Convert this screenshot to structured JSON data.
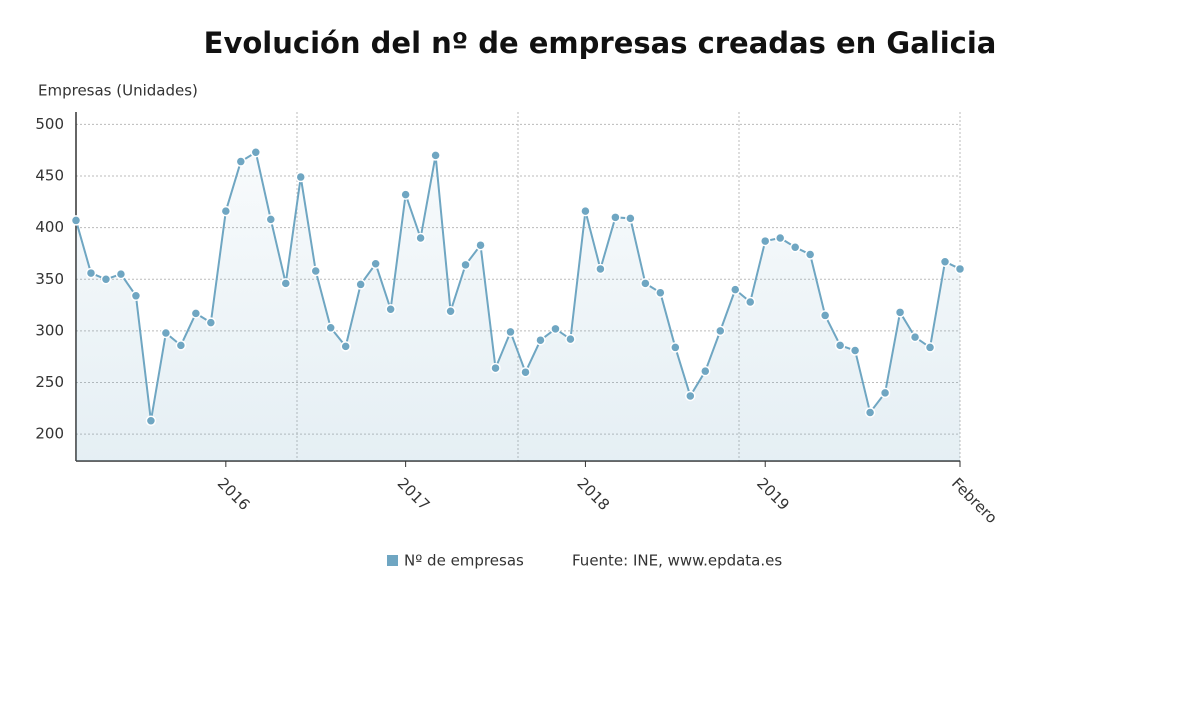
{
  "chart_data": {
    "type": "line",
    "title": "Evolución del nº de empresas creadas en Galicia",
    "y_label": "Empresas (Unidades)",
    "source": "Fuente: INE, www.epdata.es",
    "categories": [
      null,
      null,
      null,
      null,
      null,
      null,
      null,
      null,
      null,
      null,
      "2016",
      null,
      null,
      null,
      null,
      null,
      null,
      null,
      null,
      null,
      null,
      null,
      "2017",
      null,
      null,
      null,
      null,
      null,
      null,
      null,
      null,
      null,
      null,
      null,
      "2018",
      null,
      null,
      null,
      null,
      null,
      null,
      null,
      null,
      null,
      null,
      null,
      "2019",
      null,
      null,
      null,
      null,
      null,
      null,
      null,
      null,
      null,
      null,
      null,
      null,
      "Febrero"
    ],
    "series": [
      {
        "name": "Nº de empresas",
        "color": "#6fa6c2",
        "values": [
          407,
          356,
          350,
          355,
          334,
          213,
          298,
          286,
          317,
          308,
          416,
          464,
          473,
          408,
          346,
          449,
          358,
          303,
          285,
          345,
          365,
          321,
          432,
          390,
          470,
          319,
          364,
          383,
          264,
          299,
          260,
          291,
          302,
          292,
          416,
          360,
          410,
          409,
          346,
          337,
          284,
          237,
          261,
          300,
          340,
          328,
          387,
          390,
          381,
          374,
          315,
          286,
          281,
          221,
          240,
          318,
          294,
          284,
          367,
          360
        ]
      }
    ],
    "ylim": [
      174,
      512
    ],
    "yticks": [
      200,
      250,
      300,
      350,
      400,
      450,
      500
    ],
    "grid": true
  }
}
